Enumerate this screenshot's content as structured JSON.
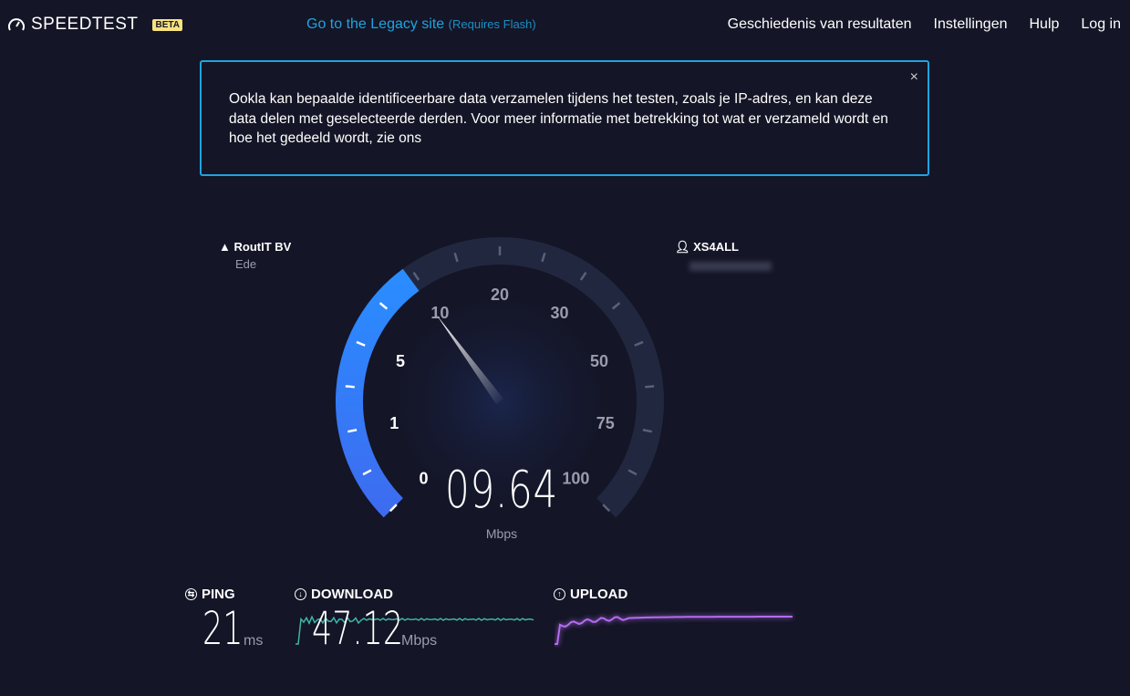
{
  "header": {
    "logo": "SPEEDTEST",
    "badge": "BETA",
    "legacy_link": "Go to the Legacy site",
    "legacy_note": "(Requires Flash)",
    "nav": [
      "Geschiedenis van resultaten",
      "Instellingen",
      "Hulp",
      "Log in"
    ]
  },
  "notice": {
    "text": "Ookla kan bepaalde identificeerbare data verzamelen tijdens het testen, zoals je IP-adres, en kan deze data delen met geselecteerde derden. Voor meer informatie met betrekking tot wat er verzameld wordt en hoe het gedeeld wordt, zie ons",
    "close": "×"
  },
  "server": {
    "name": "RoutIT BV",
    "location": "Ede"
  },
  "isp": {
    "name": "XS4ALL"
  },
  "gauge": {
    "labels": [
      "0",
      "1",
      "5",
      "10",
      "20",
      "30",
      "50",
      "75",
      "100"
    ],
    "value": "09.64",
    "value_numeric": 9.64,
    "unit": "Mbps",
    "accent": "#2a8cff"
  },
  "results": {
    "ping": {
      "label": "PING",
      "value": "21",
      "unit": "ms"
    },
    "download": {
      "label": "DOWNLOAD",
      "value": "47.12",
      "unit": "Mbps",
      "color": "#3fb5a8"
    },
    "upload": {
      "label": "UPLOAD",
      "color": "#b46cf0"
    }
  }
}
